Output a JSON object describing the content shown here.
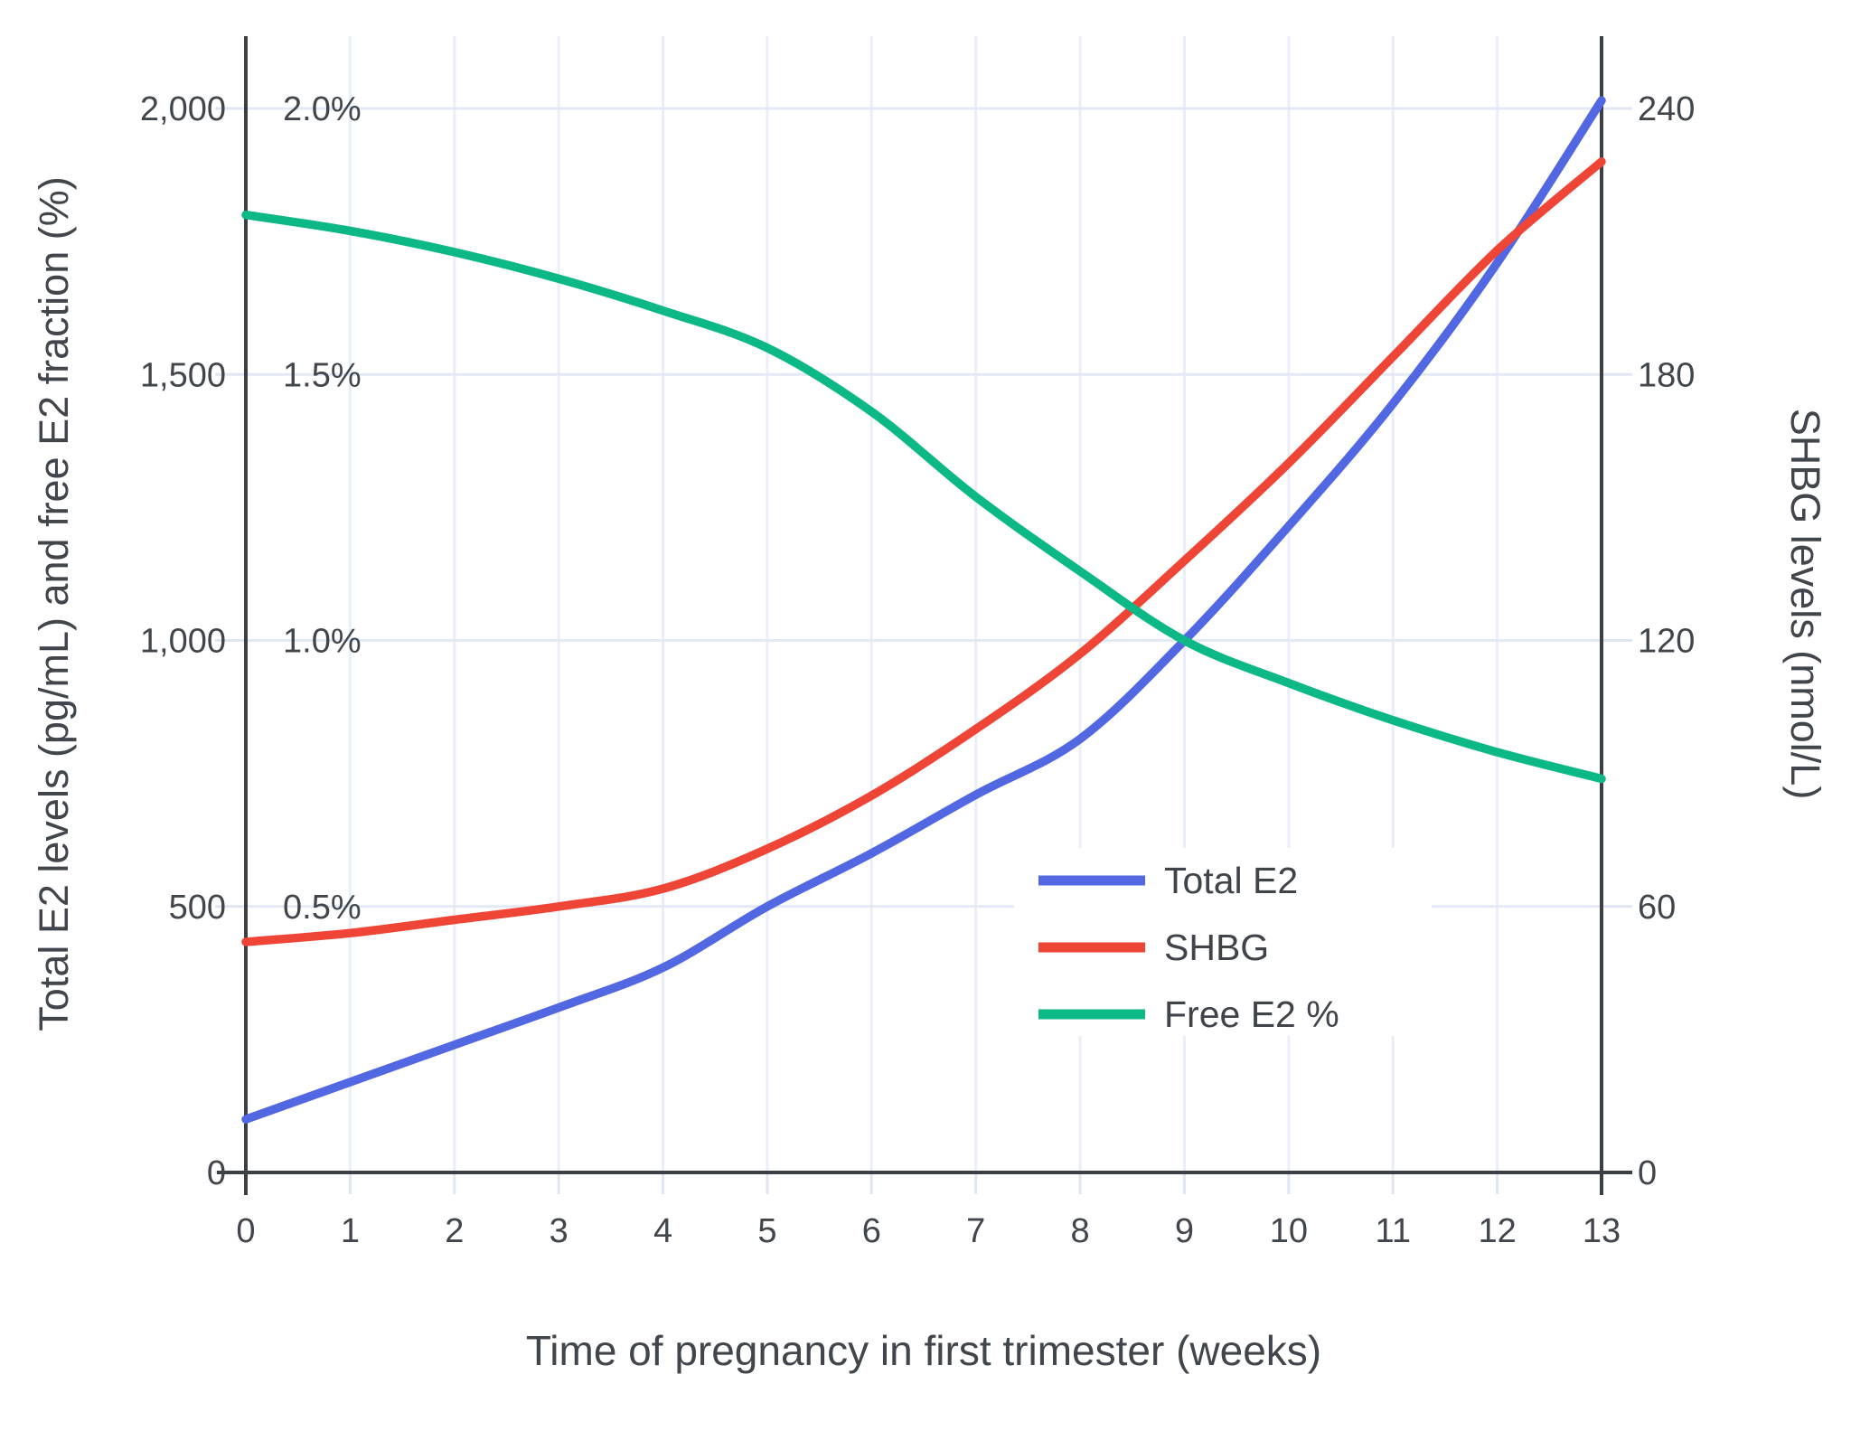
{
  "chart_data": {
    "type": "line",
    "xlabel": "Time of pregnancy in first trimester (weeks)",
    "ylabel_left": "Total E2 levels (pg/mL) and free E2 fraction (%)",
    "ylabel_right": "SHBG levels (nmol/L)",
    "x": [
      0,
      1,
      2,
      3,
      4,
      5,
      6,
      7,
      8,
      9,
      10,
      11,
      12,
      13
    ],
    "x_tick_labels": [
      "0",
      "1",
      "2",
      "3",
      "4",
      "5",
      "6",
      "7",
      "8",
      "9",
      "10",
      "11",
      "12",
      "13"
    ],
    "left_axis": {
      "tick_values": [
        0,
        500,
        1000,
        1500,
        2000
      ],
      "tick_labels": [
        "0",
        "500",
        "1,000",
        "1,500",
        "2,000"
      ],
      "range": [
        0,
        2135
      ]
    },
    "percent_axis": {
      "tick_values": [
        0.5,
        1.0,
        1.5,
        2.0
      ],
      "tick_labels": [
        "0.5%",
        "1.0%",
        "1.5%",
        "2.0%"
      ],
      "range": [
        0,
        2.135
      ]
    },
    "right_axis": {
      "tick_values": [
        0,
        60,
        120,
        180,
        240
      ],
      "tick_labels": [
        "0",
        "60",
        "120",
        "180",
        "240"
      ],
      "range": [
        0,
        256
      ]
    },
    "grid": true,
    "legend_position": "inside-right",
    "series": [
      {
        "name": "Total E2",
        "axis": "left",
        "unit": "pg/mL",
        "color": "#5267e2",
        "values": [
          100,
          170,
          240,
          310,
          385,
          500,
          600,
          710,
          815,
          1000,
          1215,
          1445,
          1710,
          2015
        ]
      },
      {
        "name": "SHBG",
        "axis": "right",
        "unit": "nmol/L",
        "color": "#ee4536",
        "values": [
          52,
          54,
          57,
          60,
          64,
          73,
          85,
          100,
          117,
          138,
          160,
          184,
          208,
          228
        ]
      },
      {
        "name": "Free E2 %",
        "axis": "percent",
        "unit": "%",
        "color": "#0cb885",
        "values": [
          1.8,
          1.77,
          1.73,
          1.68,
          1.62,
          1.55,
          1.43,
          1.27,
          1.13,
          1.0,
          0.92,
          0.85,
          0.79,
          0.74
        ]
      }
    ],
    "legend": {
      "entries": [
        "Total E2",
        "SHBG",
        "Free E2 %"
      ]
    }
  },
  "colors": {
    "background": "#ffffff",
    "grid_horizontal": "#e3e9f5",
    "grid_vertical": "#eaeef8",
    "tick_mark": "#dfe6f2",
    "axis_line": "#3b4046",
    "text": "#41464d",
    "legend_text": "#3f444b"
  }
}
